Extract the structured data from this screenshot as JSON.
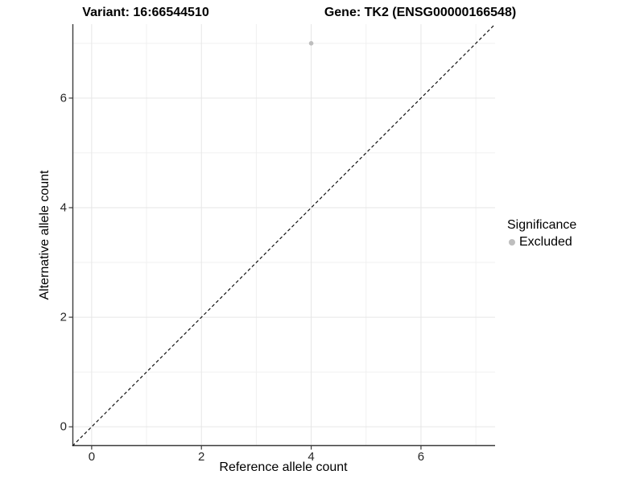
{
  "chart_data": {
    "type": "scatter",
    "title_left": "Variant: 16:66544510",
    "title_right": "Gene: TK2 (ENSG00000166548)",
    "xlabel": "Reference allele count",
    "ylabel": "Alternative allele count",
    "xlim": [
      -0.35,
      7.35
    ],
    "ylim": [
      -0.35,
      7.35
    ],
    "x_major_ticks": [
      0,
      2,
      4,
      6
    ],
    "y_major_ticks": [
      0,
      2,
      4,
      6
    ],
    "x_minor_ticks": [
      1,
      3,
      5,
      7
    ],
    "y_minor_ticks": [
      1,
      3,
      5,
      7
    ],
    "grid": "on",
    "aspect": "equal",
    "series": [
      {
        "name": "Excluded",
        "marker": "circle",
        "color": "#bebebe",
        "points": [
          [
            4,
            7
          ]
        ]
      }
    ],
    "reference_line": {
      "type": "identity",
      "style": "dashed",
      "color": "#111111",
      "from": [
        -0.35,
        -0.35
      ],
      "to": [
        7.35,
        7.35
      ]
    },
    "legend": {
      "title": "Significance",
      "position": "right",
      "items": [
        {
          "label": "Excluded",
          "color": "#bebebe"
        }
      ]
    }
  },
  "colors": {
    "background": "#ffffff",
    "grid_major": "#e6e6e6",
    "grid_minor": "#f0f0f0",
    "axis_line": "#3c3c3c",
    "tick_text": "#262626",
    "title_text": "#000000"
  }
}
